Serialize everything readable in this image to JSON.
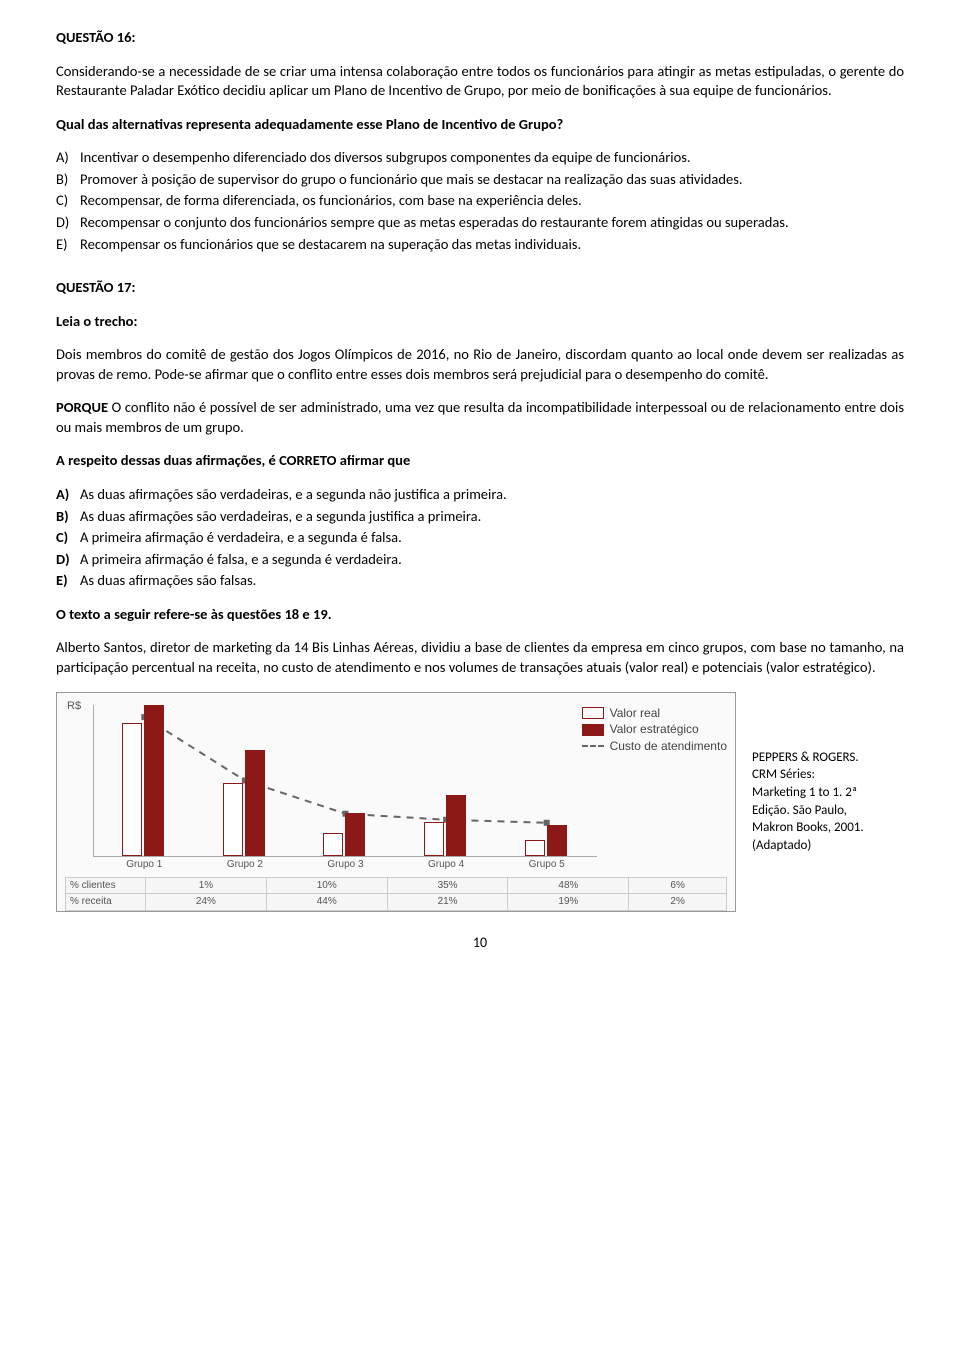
{
  "q16": {
    "title": "QUESTÃO 16:",
    "p1": "Considerando-se a necessidade de se criar uma intensa colaboração entre todos os funcionários para atingir as metas estipuladas, o gerente do Restaurante Paladar Exótico decidiu aplicar um Plano de Incentivo de Grupo, por meio de bonificações à sua equipe de funcionários.",
    "p2": "Qual das alternativas representa adequadamente esse Plano de Incentivo de Grupo?",
    "opts": {
      "a": {
        "l": "A)",
        "t": "Incentivar o desempenho diferenciado dos diversos subgrupos componentes da equipe de funcionários."
      },
      "b": {
        "l": "B)",
        "t": "Promover à posição de supervisor do grupo o funcionário que mais se destacar na realização das suas atividades."
      },
      "c": {
        "l": "C)",
        "t": "Recompensar, de forma diferenciada, os funcionários, com base na experiência deles."
      },
      "d": {
        "l": "D)",
        "t": "Recompensar o conjunto dos funcionários sempre que as metas esperadas do restaurante forem atingidas ou superadas."
      },
      "e": {
        "l": "E)",
        "t": "Recompensar os funcionários que se destacarem na superação das metas individuais."
      }
    }
  },
  "q17": {
    "title": "QUESTÃO 17:",
    "lead": "Leia o trecho:",
    "p1": "Dois membros do comitê de gestão dos Jogos Olímpicos de 2016, no Rio de Janeiro, discordam quanto ao local onde devem ser realizadas as provas de remo. Pode-se afirmar que o conflito entre esses dois membros será prejudicial para o desempenho do comitê.",
    "pq_bold": "PORQUE",
    "p2": " O conflito não é possível de ser administrado, uma vez que resulta da incompatibilidade interpessoal ou de relacionamento entre dois ou mais membros de um grupo.",
    "p3": "A respeito dessas duas afirmações, é CORRETO afirmar que",
    "opts": {
      "a": {
        "l": "A)",
        "t": "As duas afirmações são verdadeiras, e a segunda não justifica a primeira."
      },
      "b": {
        "l": "B)",
        "t": "As duas afirmações são verdadeiras, e a segunda justifica a primeira."
      },
      "c": {
        "l": "C)",
        "t": "A primeira afirmação é verdadeira, e a segunda é falsa."
      },
      "d": {
        "l": "D)",
        "t": "A primeira afirmação é falsa, e a segunda é verdadeira."
      },
      "e": {
        "l": "E)",
        "t": "As duas afirmações são falsas."
      }
    }
  },
  "q18intro": {
    "title": "O texto a seguir refere-se às questões 18 e 19.",
    "p": "Alberto Santos, diretor de marketing da 14 Bis Linhas Aéreas, dividiu a base de clientes da empresa em cinco grupos, com base no tamanho, na participação percentual na receita, no custo de atendimento e nos volumes de transações atuais (valor real) e potenciais (valor estratégico)."
  },
  "chart": {
    "ylabel": "R$",
    "legend": {
      "real": "Valor real",
      "strat": "Valor estratégico",
      "cost": "Custo de atendimento"
    },
    "colors": {
      "real_border": "#8c1818",
      "real_fill": "#ffffff",
      "strat_fill": "#8c1818",
      "dash": "#666666",
      "axis": "#aaaaaa",
      "bg": "#fafafa"
    },
    "groups": [
      {
        "label": "Grupo 1",
        "real": 88,
        "strat": 100,
        "cost": 92
      },
      {
        "label": "Grupo 2",
        "real": 48,
        "strat": 70,
        "cost": 50
      },
      {
        "label": "Grupo 3",
        "real": 15,
        "strat": 28,
        "cost": 28
      },
      {
        "label": "Grupo 4",
        "real": 22,
        "strat": 40,
        "cost": 24
      },
      {
        "label": "Grupo 5",
        "real": 10,
        "strat": 20,
        "cost": 22
      }
    ],
    "table": {
      "row1_label": "% clientes",
      "row1": [
        "1%",
        "10%",
        "35%",
        "48%",
        "6%"
      ],
      "row2_label": "% receita",
      "row2": [
        "24%",
        "44%",
        "21%",
        "19%",
        "2%"
      ]
    }
  },
  "citation": {
    "l1": "PEPPERS & ROGERS.",
    "l2": "CRM Séries:",
    "l3": "Marketing 1 to 1. 2ª",
    "l4": "Edição. São Paulo,",
    "l5": "Makron Books, 2001.",
    "l6": "(Adaptado)"
  },
  "page": "10"
}
